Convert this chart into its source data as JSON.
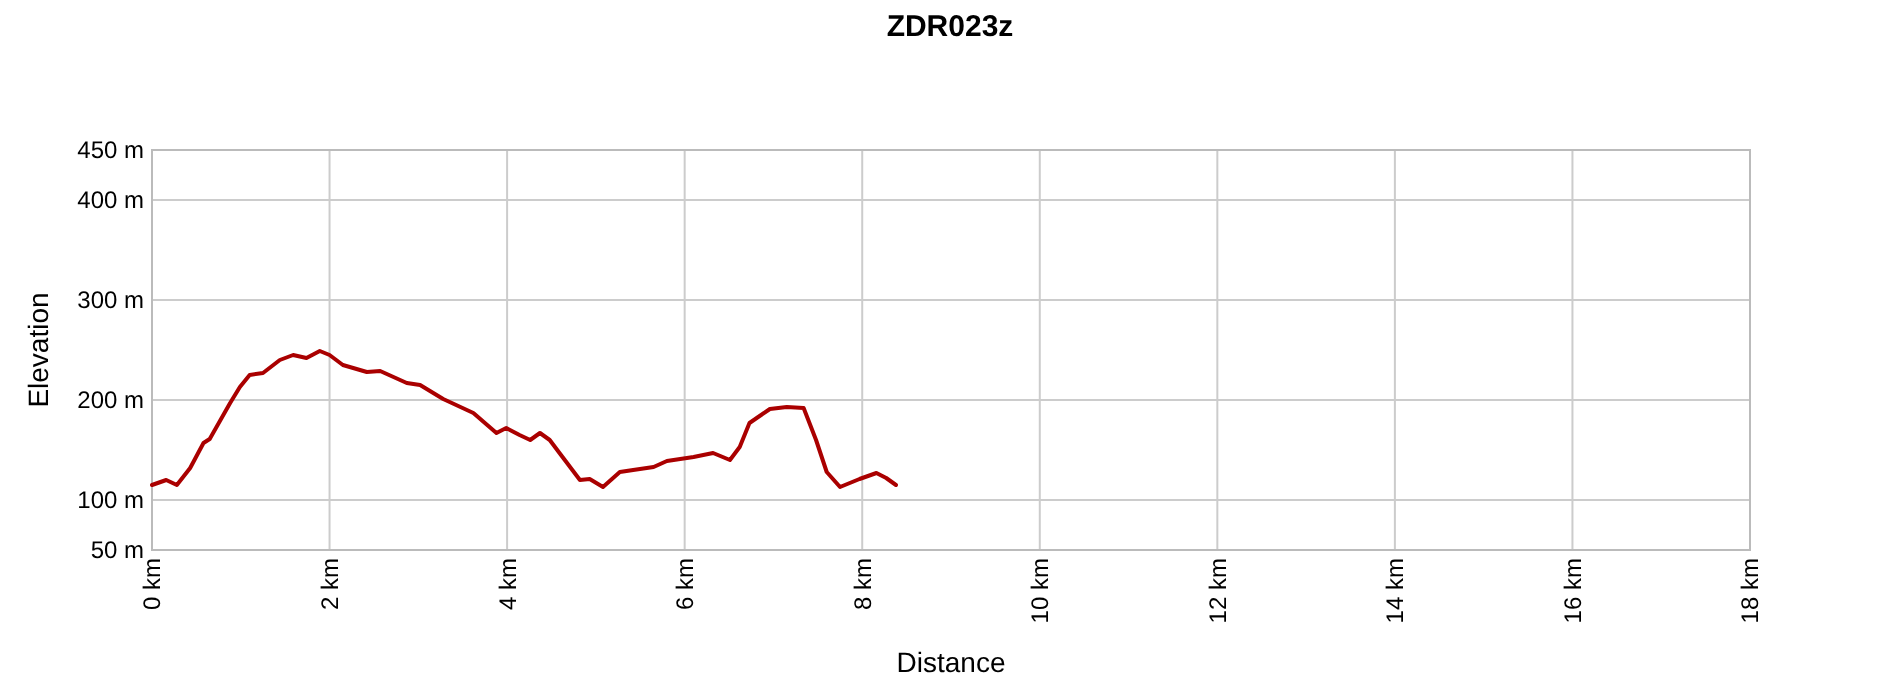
{
  "chart_data": {
    "type": "line",
    "title": "ZDR023z",
    "xlabel": "Distance",
    "ylabel": "Elevation",
    "xlim": [
      0,
      18
    ],
    "ylim": [
      50,
      450
    ],
    "xticks": [
      {
        "value": 0,
        "label": "0 km"
      },
      {
        "value": 2,
        "label": "2 km"
      },
      {
        "value": 4,
        "label": "4 km"
      },
      {
        "value": 6,
        "label": "6 km"
      },
      {
        "value": 8,
        "label": "8 km"
      },
      {
        "value": 10,
        "label": "10 km"
      },
      {
        "value": 12,
        "label": "12 km"
      },
      {
        "value": 14,
        "label": "14 km"
      },
      {
        "value": 16,
        "label": "16 km"
      },
      {
        "value": 18,
        "label": "18 km"
      }
    ],
    "yticks": [
      {
        "value": 50,
        "label": "50 m"
      },
      {
        "value": 100,
        "label": "100 m"
      },
      {
        "value": 200,
        "label": "200 m"
      },
      {
        "value": 300,
        "label": "300 m"
      },
      {
        "value": 400,
        "label": "400 m"
      },
      {
        "value": 450,
        "label": "450 m"
      }
    ],
    "grid": true,
    "marker": "none",
    "line_style": "solid",
    "series": [
      {
        "color": "#aa0000",
        "x": [
          0,
          0.16,
          0.28,
          0.43,
          0.58,
          0.65,
          0.88,
          0.99,
          1.1,
          1.25,
          1.44,
          1.59,
          1.74,
          1.89,
          2.0,
          2.15,
          2.42,
          2.57,
          2.87,
          3.02,
          3.28,
          3.62,
          3.88,
          3.99,
          4.14,
          4.26,
          4.37,
          4.48,
          4.59,
          4.82,
          4.93,
          5.08,
          5.27,
          5.42,
          5.65,
          5.8,
          6.1,
          6.32,
          6.51,
          6.62,
          6.73,
          6.96,
          7.15,
          7.34,
          7.48,
          7.6,
          7.75,
          7.97,
          8.16,
          8.27,
          8.38
        ],
        "values": [
          115,
          120,
          115,
          132,
          157,
          161,
          197,
          213,
          225,
          227,
          240,
          245,
          242,
          249,
          245,
          235,
          228,
          229,
          217,
          215,
          201,
          187,
          167,
          172,
          165,
          160,
          167,
          160,
          147,
          120,
          121,
          113,
          128,
          130,
          133,
          139,
          143,
          147,
          140,
          153,
          177,
          191,
          193,
          192,
          160,
          128,
          113,
          121,
          127,
          122,
          115
        ]
      }
    ]
  }
}
